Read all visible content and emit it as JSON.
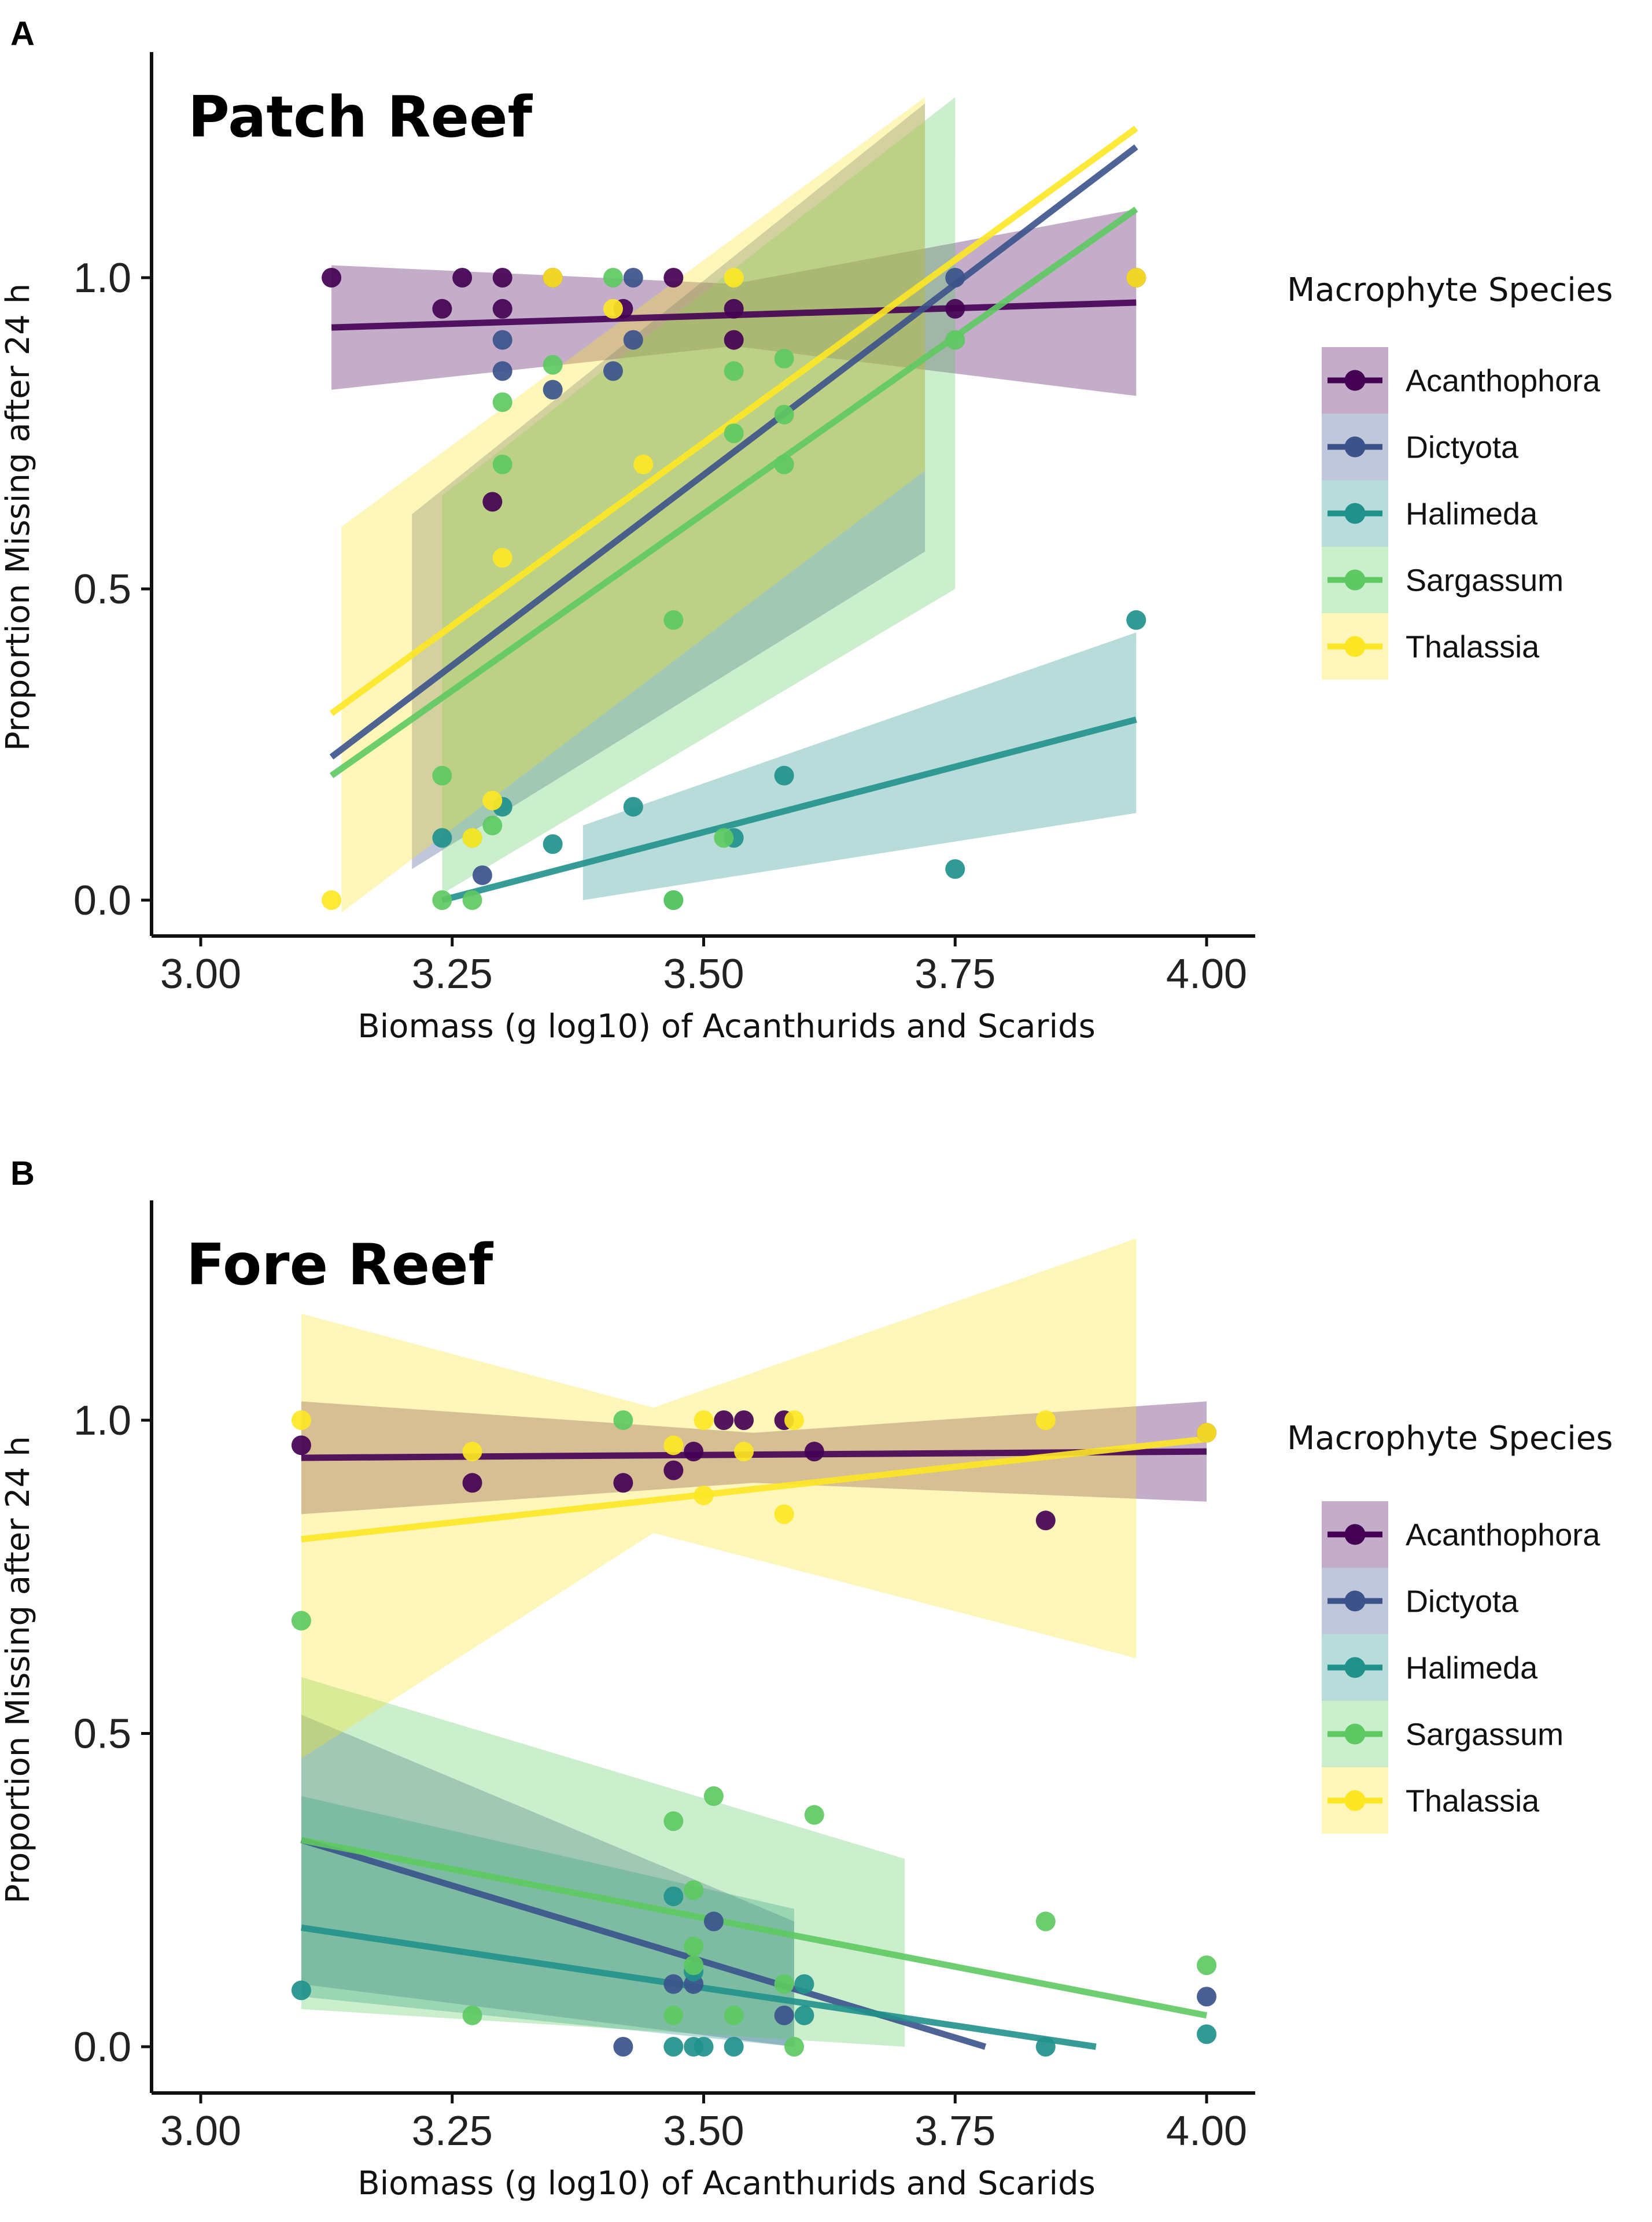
{
  "chart_data": [
    {
      "type": "scatter",
      "panel_label": "A",
      "title": "Patch Reef",
      "xlabel": "Biomass (g log10) of Acanthurids and Scarids",
      "ylabel": "Proportion Missing after 24 h",
      "xlim": [
        2.95,
        4.05
      ],
      "ylim": [
        -0.06,
        1.35
      ],
      "xticks": [
        "3.00",
        "3.25",
        "3.50",
        "3.75",
        "4.00"
      ],
      "yticks": [
        "0.0",
        "0.5",
        "1.0"
      ],
      "legend_title": "Macrophyte Species",
      "series": [
        {
          "name": "Acanthophora",
          "color": "#440154",
          "points": [
            [
              3.13,
              1.0
            ],
            [
              3.26,
              1.0
            ],
            [
              3.3,
              1.0
            ],
            [
              3.35,
              1.0
            ],
            [
              3.47,
              1.0
            ],
            [
              3.24,
              0.95
            ],
            [
              3.3,
              0.95
            ],
            [
              3.29,
              0.64
            ],
            [
              3.42,
              0.95
            ],
            [
              3.53,
              0.95
            ],
            [
              3.53,
              0.9
            ],
            [
              3.75,
              0.95
            ],
            [
              3.93,
              1.0
            ]
          ],
          "fit": [
            [
              3.13,
              0.92
            ],
            [
              3.93,
              0.96
            ]
          ],
          "band": {
            "x": [
              3.13,
              3.53,
              3.93
            ],
            "lo": [
              0.82,
              0.89,
              0.81
            ],
            "hi": [
              1.02,
              0.99,
              1.11
            ]
          }
        },
        {
          "name": "Dictyota",
          "color": "#3b528b",
          "points": [
            [
              3.43,
              1.0
            ],
            [
              3.3,
              0.9
            ],
            [
              3.3,
              0.85
            ],
            [
              3.35,
              0.82
            ],
            [
              3.41,
              0.85
            ],
            [
              3.28,
              0.04
            ],
            [
              3.75,
              1.0
            ],
            [
              3.43,
              0.9
            ]
          ],
          "fit": [
            [
              3.13,
              0.23
            ],
            [
              3.93,
              1.21
            ]
          ],
          "band": {
            "x": [
              3.21,
              3.72
            ],
            "lo": [
              0.05,
              0.56
            ],
            "hi": [
              0.62,
              1.28
            ]
          }
        },
        {
          "name": "Halimeda",
          "color": "#21918c",
          "points": [
            [
              3.93,
              0.45
            ],
            [
              3.58,
              0.2
            ],
            [
              3.43,
              0.15
            ],
            [
              3.3,
              0.15
            ],
            [
              3.24,
              0.1
            ],
            [
              3.35,
              0.09
            ],
            [
              3.53,
              0.1
            ],
            [
              3.75,
              0.05
            ],
            [
              3.47,
              0.0
            ]
          ],
          "fit": [
            [
              3.24,
              0.0
            ],
            [
              3.93,
              0.29
            ]
          ],
          "band": {
            "x": [
              3.38,
              3.93
            ],
            "lo": [
              0.0,
              0.14
            ],
            "hi": [
              0.12,
              0.43
            ]
          }
        },
        {
          "name": "Sargassum",
          "color": "#5ec962",
          "points": [
            [
              3.41,
              1.0
            ],
            [
              3.35,
              0.86
            ],
            [
              3.3,
              0.8
            ],
            [
              3.3,
              0.7
            ],
            [
              3.53,
              0.85
            ],
            [
              3.58,
              0.87
            ],
            [
              3.58,
              0.78
            ],
            [
              3.53,
              0.75
            ],
            [
              3.58,
              0.7
            ],
            [
              3.47,
              0.45
            ],
            [
              3.24,
              0.2
            ],
            [
              3.29,
              0.12
            ],
            [
              3.27,
              0.1
            ],
            [
              3.24,
              0.0
            ],
            [
              3.27,
              0.0
            ],
            [
              3.47,
              0.0
            ],
            [
              3.52,
              0.1
            ],
            [
              3.75,
              0.9
            ]
          ],
          "fit": [
            [
              3.13,
              0.2
            ],
            [
              3.93,
              1.11
            ]
          ],
          "band": {
            "x": [
              3.24,
              3.75
            ],
            "lo": [
              0.01,
              0.5
            ],
            "hi": [
              0.65,
              1.29
            ]
          }
        },
        {
          "name": "Thalassia",
          "color": "#fde725",
          "points": [
            [
              3.35,
              1.0
            ],
            [
              3.53,
              1.0
            ],
            [
              3.93,
              1.0
            ],
            [
              3.41,
              0.95
            ],
            [
              3.44,
              0.7
            ],
            [
              3.3,
              0.55
            ],
            [
              3.29,
              0.16
            ],
            [
              3.13,
              0.0
            ],
            [
              3.27,
              0.1
            ]
          ],
          "fit": [
            [
              3.13,
              0.3
            ],
            [
              3.93,
              1.24
            ]
          ],
          "band": {
            "x": [
              3.14,
              3.72
            ],
            "lo": [
              -0.02,
              0.69
            ],
            "hi": [
              0.6,
              1.29
            ]
          }
        }
      ]
    },
    {
      "type": "scatter",
      "panel_label": "B",
      "title": "Fore Reef",
      "xlabel": "Biomass (g log10) of Acanthurids and Scarids",
      "ylabel": "Proportion Missing after 24 h",
      "xlim": [
        2.95,
        4.05
      ],
      "ylim": [
        -0.05,
        1.35
      ],
      "xticks": [
        "3.00",
        "3.25",
        "3.50",
        "3.75",
        "4.00"
      ],
      "yticks": [
        "0.0",
        "0.5",
        "1.0"
      ],
      "legend_title": "Macrophyte Species",
      "series": [
        {
          "name": "Acanthophora",
          "color": "#440154",
          "points": [
            [
              3.1,
              0.96
            ],
            [
              3.27,
              0.9
            ],
            [
              3.42,
              0.9
            ],
            [
              3.47,
              0.92
            ],
            [
              3.49,
              0.95
            ],
            [
              3.52,
              1.0
            ],
            [
              3.54,
              1.0
            ],
            [
              3.58,
              1.0
            ],
            [
              3.61,
              0.95
            ],
            [
              3.84,
              0.84
            ],
            [
              4.0,
              0.98
            ]
          ],
          "fit": [
            [
              3.1,
              0.94
            ],
            [
              4.0,
              0.95
            ]
          ],
          "band": {
            "x": [
              3.1,
              3.55,
              4.0
            ],
            "lo": [
              0.85,
              0.9,
              0.87
            ],
            "hi": [
              1.03,
              0.98,
              1.03
            ]
          }
        },
        {
          "name": "Dictyota",
          "color": "#3b528b",
          "points": [
            [
              3.42,
              0.0
            ],
            [
              3.47,
              0.1
            ],
            [
              3.49,
              0.1
            ],
            [
              3.51,
              0.2
            ],
            [
              3.58,
              0.05
            ],
            [
              4.0,
              0.08
            ]
          ],
          "fit": [
            [
              3.1,
              0.33
            ],
            [
              3.78,
              0.0
            ]
          ],
          "band": {
            "x": [
              3.1,
              3.59
            ],
            "lo": [
              0.1,
              0.0
            ],
            "hi": [
              0.53,
              0.2
            ]
          }
        },
        {
          "name": "Halimeda",
          "color": "#21918c",
          "points": [
            [
              3.1,
              0.09
            ],
            [
              3.47,
              0.24
            ],
            [
              3.47,
              0.0
            ],
            [
              3.49,
              0.0
            ],
            [
              3.5,
              0.0
            ],
            [
              3.53,
              0.0
            ],
            [
              3.49,
              0.12
            ],
            [
              3.6,
              0.1
            ],
            [
              3.6,
              0.05
            ],
            [
              3.84,
              0.0
            ],
            [
              4.0,
              0.02
            ]
          ],
          "fit": [
            [
              3.1,
              0.19
            ],
            [
              3.89,
              0.0
            ]
          ],
          "band": {
            "x": [
              3.1,
              3.59
            ],
            "lo": [
              0.08,
              0.0
            ],
            "hi": [
              0.4,
              0.22
            ]
          }
        },
        {
          "name": "Sargassum",
          "color": "#5ec962",
          "points": [
            [
              3.1,
              0.68
            ],
            [
              3.42,
              1.0
            ],
            [
              3.27,
              0.05
            ],
            [
              3.47,
              0.36
            ],
            [
              3.49,
              0.25
            ],
            [
              3.51,
              0.4
            ],
            [
              3.49,
              0.16
            ],
            [
              3.49,
              0.13
            ],
            [
              3.53,
              0.05
            ],
            [
              3.47,
              0.05
            ],
            [
              3.59,
              0.0
            ],
            [
              3.58,
              0.1
            ],
            [
              3.61,
              0.37
            ],
            [
              3.84,
              0.2
            ],
            [
              4.0,
              0.13
            ]
          ],
          "fit": [
            [
              3.1,
              0.33
            ],
            [
              4.0,
              0.05
            ]
          ],
          "band": {
            "x": [
              3.1,
              3.7
            ],
            "lo": [
              0.06,
              0.0
            ],
            "hi": [
              0.59,
              0.3
            ]
          }
        },
        {
          "name": "Thalassia",
          "color": "#fde725",
          "points": [
            [
              3.1,
              1.0
            ],
            [
              3.27,
              0.95
            ],
            [
              3.47,
              0.96
            ],
            [
              3.5,
              1.0
            ],
            [
              3.59,
              1.0
            ],
            [
              3.5,
              0.88
            ],
            [
              3.58,
              0.85
            ],
            [
              3.84,
              1.0
            ],
            [
              4.0,
              0.98
            ],
            [
              3.54,
              0.95
            ]
          ],
          "fit": [
            [
              3.1,
              0.81
            ],
            [
              4.0,
              0.97
            ]
          ],
          "band": {
            "x": [
              3.1,
              3.45,
              3.93
            ],
            "lo": [
              0.46,
              0.82,
              0.62
            ],
            "hi": [
              1.17,
              1.02,
              1.29
            ]
          }
        }
      ]
    }
  ]
}
